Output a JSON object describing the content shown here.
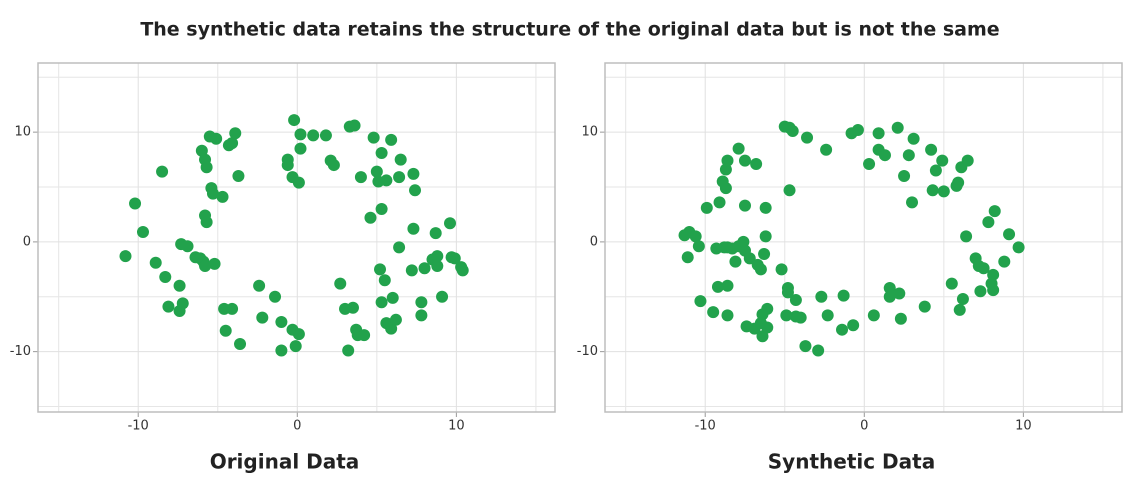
{
  "title": "The synthetic data retains the structure of the original data but is not the same",
  "chart_data": [
    {
      "type": "scatter",
      "title": "Original Data",
      "color": "#22a24c",
      "xlim": [
        -16.3,
        16.2
      ],
      "ylim": [
        -15.5,
        16.3
      ],
      "xticks": [
        -10,
        0,
        10
      ],
      "yticks": [
        -10,
        0,
        10
      ],
      "grid": true,
      "xgrid_minor": [
        -15,
        -5,
        5,
        15
      ],
      "ygrid_minor": [
        -15,
        -5,
        5,
        15
      ],
      "x": [
        -10.8,
        -10.2,
        -9.7,
        -8.9,
        -8.5,
        -8.3,
        -8.1,
        -7.4,
        -7.4,
        -7.2,
        -7.3,
        -6.9,
        -6.4,
        -6.1,
        -5.9,
        -5.8,
        -5.2,
        -6.0,
        -5.8,
        -5.7,
        -5.5,
        -5.1,
        -5.4,
        -5.3,
        -5.8,
        -5.7,
        -4.7,
        -4.3,
        -4.1,
        -3.9,
        -3.7,
        -4.6,
        -4.1,
        -4.5,
        -3.6,
        -2.4,
        -2.2,
        -1.4,
        -1.0,
        -1.0,
        -0.3,
        0.1,
        -0.1,
        -0.6,
        -0.6,
        -0.3,
        0.1,
        -0.2,
        0.2,
        0.2,
        1.0,
        1.8,
        2.1,
        2.3,
        2.7,
        3.0,
        3.2,
        3.5,
        3.7,
        3.8,
        4.2,
        3.3,
        3.6,
        4.0,
        4.6,
        4.8,
        5.0,
        5.1,
        5.3,
        5.3,
        5.2,
        5.5,
        5.3,
        5.6,
        5.9,
        6.2,
        6.0,
        5.6,
        5.9,
        6.4,
        6.5,
        6.4,
        7.3,
        7.4,
        7.3,
        7.2,
        7.8,
        7.8,
        8.0,
        8.5,
        8.7,
        8.8,
        8.8,
        9.1,
        9.6,
        9.7,
        9.9,
        10.3,
        10.4
      ],
      "values": [
        -1.3,
        3.5,
        0.9,
        -1.9,
        6.4,
        -3.2,
        -5.9,
        -4.0,
        -6.3,
        -5.6,
        -0.2,
        -0.4,
        -1.4,
        -1.5,
        -1.8,
        -2.2,
        -2.0,
        8.3,
        7.5,
        6.8,
        9.6,
        9.4,
        4.9,
        4.4,
        2.4,
        1.8,
        4.1,
        8.8,
        9.0,
        9.9,
        6.0,
        -6.1,
        -6.1,
        -8.1,
        -9.3,
        -4.0,
        -6.9,
        -5.0,
        -7.3,
        -9.9,
        -8.0,
        -8.4,
        -9.5,
        7.5,
        7.0,
        5.9,
        5.4,
        11.1,
        9.8,
        8.5,
        9.7,
        9.7,
        7.4,
        7.0,
        -3.8,
        -6.1,
        -9.9,
        -6.0,
        -8.0,
        -8.5,
        -8.5,
        10.5,
        10.6,
        5.9,
        2.2,
        9.5,
        6.4,
        5.5,
        8.1,
        3.0,
        -2.5,
        -3.5,
        -5.5,
        -7.4,
        -7.9,
        -7.1,
        -5.1,
        5.6,
        9.3,
        5.9,
        7.5,
        -0.5,
        6.2,
        4.7,
        1.2,
        -2.6,
        -5.5,
        -6.7,
        -2.4,
        -1.6,
        0.8,
        -2.2,
        -1.3,
        -5.0,
        1.7,
        -1.4,
        -1.5,
        -2.3,
        -2.6
      ]
    },
    {
      "type": "scatter",
      "title": "Synthetic Data",
      "color": "#22a24c",
      "xlim": [
        -16.3,
        16.2
      ],
      "ylim": [
        -15.5,
        16.3
      ],
      "xticks": [
        -10,
        0,
        10
      ],
      "yticks": [
        -10,
        0,
        10
      ],
      "grid": true,
      "xgrid_minor": [
        -15,
        -5,
        5,
        15
      ],
      "ygrid_minor": [
        -15,
        -5,
        5,
        15
      ],
      "x": [
        -11.3,
        -11.0,
        -11.1,
        -10.6,
        -10.4,
        -10.3,
        -9.9,
        -9.5,
        -9.1,
        -9.3,
        -9.2,
        -8.9,
        -8.7,
        -8.7,
        -8.6,
        -8.8,
        -8.6,
        -8.6,
        -8.6,
        -7.9,
        -7.5,
        -7.5,
        -8.3,
        -7.9,
        -8.1,
        -7.6,
        -7.5,
        -7.2,
        -6.8,
        -6.7,
        -6.5,
        -7.4,
        -6.9,
        -6.5,
        -6.3,
        -6.2,
        -6.2,
        -6.4,
        -6.1,
        -6.4,
        -6.1,
        -5.2,
        -4.8,
        -4.8,
        -4.3,
        -4.7,
        -5.0,
        -4.7,
        -4.5,
        -3.6,
        -4.9,
        -4.3,
        -4.0,
        -3.7,
        -2.9,
        -2.7,
        -2.3,
        -2.4,
        -1.4,
        -1.3,
        -0.7,
        -0.8,
        -0.4,
        0.3,
        0.6,
        0.9,
        0.9,
        1.3,
        1.6,
        1.6,
        2.1,
        2.2,
        2.3,
        2.5,
        2.8,
        3.0,
        3.1,
        3.8,
        4.2,
        4.3,
        4.5,
        4.9,
        5.0,
        5.5,
        5.8,
        5.9,
        6.1,
        6.5,
        6.4,
        6.0,
        6.2,
        7.0,
        7.2,
        7.3,
        7.5,
        7.8,
        8.0,
        8.1,
        8.1,
        8.2,
        8.8,
        9.1,
        9.7
      ],
      "values": [
        0.6,
        0.9,
        -1.4,
        0.5,
        -0.4,
        -5.4,
        3.1,
        -6.4,
        3.6,
        -0.6,
        -4.1,
        5.5,
        4.9,
        6.6,
        7.4,
        -0.5,
        -0.5,
        -4.0,
        -6.7,
        8.5,
        7.4,
        3.3,
        -0.6,
        -0.4,
        -1.8,
        0.0,
        -0.8,
        -1.5,
        7.1,
        -2.1,
        -2.5,
        -7.7,
        -7.9,
        -7.4,
        -1.1,
        0.5,
        3.1,
        -6.6,
        -6.1,
        -8.6,
        -7.8,
        -2.5,
        -4.2,
        -4.6,
        -5.3,
        4.7,
        10.5,
        10.4,
        10.1,
        9.5,
        -6.7,
        -6.8,
        -6.9,
        -9.5,
        -9.9,
        -5.0,
        -6.7,
        8.4,
        -8.0,
        -4.9,
        -7.6,
        9.9,
        10.2,
        7.1,
        -6.7,
        9.9,
        8.4,
        7.9,
        -4.2,
        -5.0,
        10.4,
        -4.7,
        -7.0,
        6.0,
        7.9,
        3.6,
        9.4,
        -5.9,
        8.4,
        4.7,
        6.5,
        7.4,
        4.6,
        -3.8,
        5.1,
        5.4,
        6.8,
        7.4,
        0.5,
        -6.2,
        -5.2,
        -1.5,
        -2.2,
        -4.5,
        -2.4,
        1.8,
        -3.8,
        -3.0,
        -4.4,
        2.8,
        -1.8,
        0.7,
        -0.5
      ]
    }
  ]
}
